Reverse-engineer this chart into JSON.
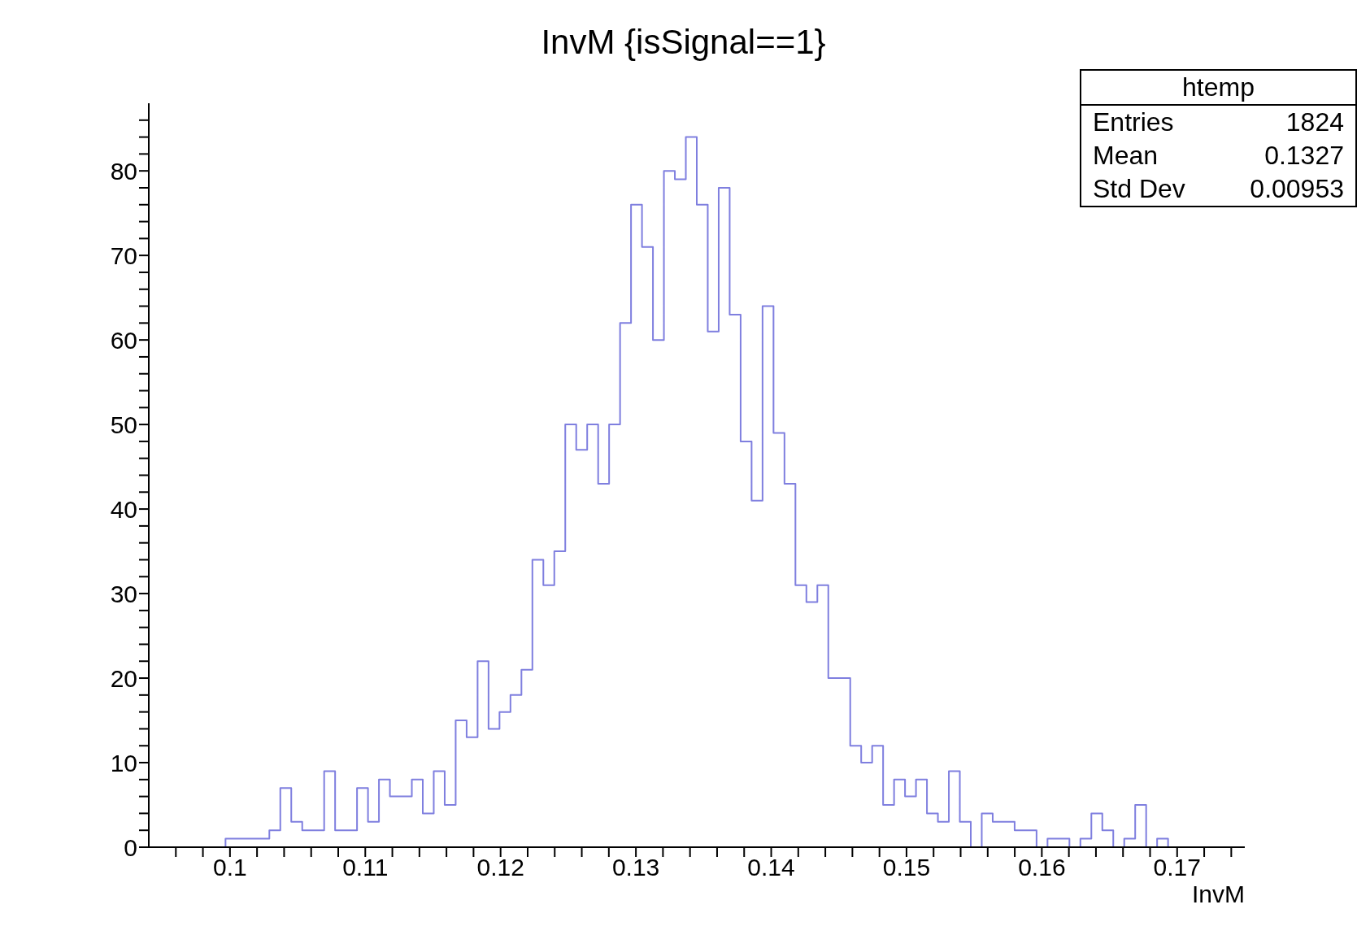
{
  "chart_data": {
    "type": "histogram",
    "title": "InvM {isSignal==1}",
    "xlabel": "InvM",
    "annotations": [
      "htemp",
      "Entries",
      "1824",
      "Mean",
      "0.1327",
      "Std Dev",
      "0.00953"
    ],
    "color": "#7f7fdf",
    "bins": [
      0.094,
      0.09481,
      0.09562,
      0.09643,
      0.09724,
      0.09805,
      0.09886,
      0.09967,
      0.10048,
      0.10129,
      0.1021,
      0.10291,
      0.10372,
      0.10453,
      0.10534,
      0.10615,
      0.10696,
      0.10777,
      0.10858,
      0.10939,
      0.1102,
      0.11101,
      0.11182,
      0.11263,
      0.11344,
      0.11425,
      0.11506,
      0.11587,
      0.11668,
      0.11749,
      0.1183,
      0.11911,
      0.11992,
      0.12073,
      0.12154,
      0.12235,
      0.12316,
      0.12397,
      0.12478,
      0.12559,
      0.1264,
      0.12721,
      0.12802,
      0.12883,
      0.12964,
      0.13045,
      0.13126,
      0.13207,
      0.13288,
      0.13369,
      0.1345,
      0.13531,
      0.13612,
      0.13693,
      0.13774,
      0.13855,
      0.13936,
      0.14017,
      0.14098,
      0.14179,
      0.1426,
      0.14341,
      0.14422,
      0.14503,
      0.14584,
      0.14665,
      0.14746,
      0.14827,
      0.14908,
      0.14989,
      0.1507,
      0.15151,
      0.15232,
      0.15313,
      0.15394,
      0.15475,
      0.15556,
      0.15637,
      0.15718,
      0.15799,
      0.1588,
      0.15961,
      0.16042,
      0.16123,
      0.16204,
      0.16285,
      0.16366,
      0.16447,
      0.16528,
      0.16609,
      0.1669,
      0.16771,
      0.16852,
      0.16933,
      0.17014,
      0.17095,
      0.17176,
      0.17257,
      0.17338,
      0.17419,
      0.175
    ],
    "values": [
      0,
      0,
      0,
      0,
      0,
      0,
      0,
      1,
      1,
      1,
      1,
      2,
      7,
      3,
      2,
      2,
      9,
      2,
      2,
      7,
      3,
      8,
      6,
      6,
      8,
      4,
      9,
      5,
      15,
      13,
      22,
      14,
      16,
      18,
      21,
      34,
      31,
      35,
      50,
      47,
      50,
      43,
      50,
      62,
      76,
      71,
      60,
      80,
      79,
      84,
      76,
      61,
      78,
      63,
      48,
      41,
      64,
      49,
      43,
      31,
      29,
      31,
      20,
      20,
      12,
      10,
      12,
      5,
      8,
      6,
      8,
      4,
      3,
      9,
      3,
      0,
      4,
      3,
      3,
      2,
      2,
      0,
      1,
      1,
      0,
      1,
      4,
      2,
      0,
      1,
      5,
      0,
      1,
      0,
      0,
      0,
      0,
      0,
      0,
      0
    ],
    "xlim": [
      0.094,
      0.175
    ],
    "xticks": [
      {
        "value": 0.096,
        "label": null
      },
      {
        "value": 0.098,
        "label": null
      },
      {
        "value": 0.1,
        "label": "0.1"
      },
      {
        "value": 0.102,
        "label": null
      },
      {
        "value": 0.104,
        "label": null
      },
      {
        "value": 0.106,
        "label": null
      },
      {
        "value": 0.108,
        "label": null
      },
      0.11,
      {
        "value": 0.112,
        "label": null
      },
      {
        "value": 0.114,
        "label": null
      },
      {
        "value": 0.116,
        "label": null
      },
      {
        "value": 0.118,
        "label": null
      },
      0.12,
      {
        "value": 0.122,
        "label": null
      },
      {
        "value": 0.124,
        "label": null
      },
      {
        "value": 0.126,
        "label": null
      },
      {
        "value": 0.128,
        "label": null
      },
      0.13,
      {
        "value": 0.132,
        "label": null
      },
      {
        "value": 0.134,
        "label": null
      },
      {
        "value": 0.136,
        "label": null
      },
      {
        "value": 0.138,
        "label": null
      },
      0.14,
      {
        "value": 0.142,
        "label": null
      },
      {
        "value": 0.144,
        "label": null
      },
      {
        "value": 0.146,
        "label": null
      },
      {
        "value": 0.148,
        "label": null
      },
      0.15,
      {
        "value": 0.152,
        "label": null
      },
      {
        "value": 0.154,
        "label": null
      },
      {
        "value": 0.156,
        "label": null
      },
      {
        "value": 0.158,
        "label": null
      },
      0.16,
      {
        "value": 0.162,
        "label": null
      },
      {
        "value": 0.164,
        "label": null
      },
      {
        "value": 0.166,
        "label": null
      },
      {
        "value": 0.168,
        "label": null
      },
      0.17,
      {
        "value": 0.172,
        "label": null
      },
      {
        "value": 0.174,
        "label": null
      }
    ],
    "ylim": [
      0,
      88
    ],
    "yticks": [
      0,
      {
        "value": 2,
        "label": null
      },
      {
        "value": 4,
        "label": null
      },
      {
        "value": 6,
        "label": null
      },
      {
        "value": 8,
        "label": null
      },
      10,
      {
        "value": 12,
        "label": null
      },
      {
        "value": 14,
        "label": null
      },
      {
        "value": 16,
        "label": null
      },
      {
        "value": 18,
        "label": null
      },
      20,
      {
        "value": 22,
        "label": null
      },
      {
        "value": 24,
        "label": null
      },
      {
        "value": 26,
        "label": null
      },
      {
        "value": 28,
        "label": null
      },
      30,
      {
        "value": 32,
        "label": null
      },
      {
        "value": 34,
        "label": null
      },
      {
        "value": 36,
        "label": null
      },
      {
        "value": 38,
        "label": null
      },
      40,
      {
        "value": 42,
        "label": null
      },
      {
        "value": 44,
        "label": null
      },
      {
        "value": 46,
        "label": null
      },
      {
        "value": 48,
        "label": null
      },
      50,
      {
        "value": 52,
        "label": null
      },
      {
        "value": 54,
        "label": null
      },
      {
        "value": 56,
        "label": null
      },
      {
        "value": 58,
        "label": null
      },
      60,
      {
        "value": 62,
        "label": null
      },
      {
        "value": 64,
        "label": null
      },
      {
        "value": 66,
        "label": null
      },
      {
        "value": 68,
        "label": null
      },
      70,
      {
        "value": 72,
        "label": null
      },
      {
        "value": 74,
        "label": null
      },
      {
        "value": 76,
        "label": null
      },
      {
        "value": 78,
        "label": null
      },
      80,
      {
        "value": 82,
        "label": null
      },
      {
        "value": 84,
        "label": null
      },
      {
        "value": 86,
        "label": null
      }
    ],
    "grid": false,
    "legend": false
  }
}
